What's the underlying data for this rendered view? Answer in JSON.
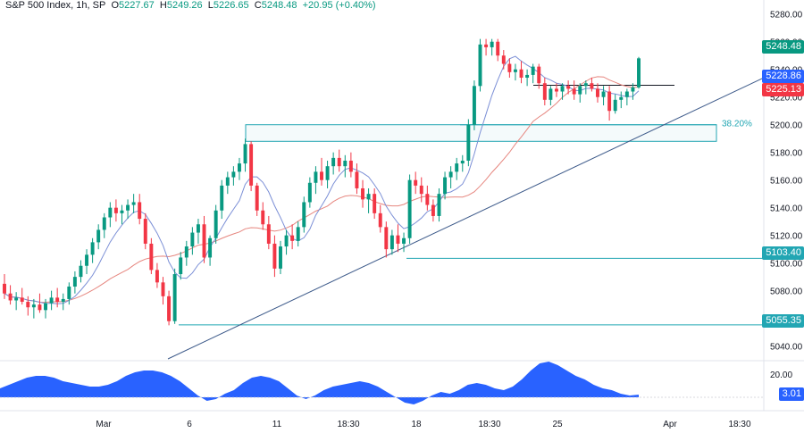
{
  "header": {
    "symbol": "S&P 500 Index, 1h, SP",
    "o_label": "O",
    "o_value": "5227.67",
    "h_label": "H",
    "h_value": "5249.26",
    "l_label": "L",
    "l_value": "5226.65",
    "c_label": "C",
    "c_value": "5248.48",
    "change": "+20.95 (+0.40%)"
  },
  "colors": {
    "up": "#089981",
    "down": "#f23645",
    "fast_ma": "#7b8fd6",
    "slow_ma": "#e6867f",
    "level": "#22a6b3",
    "trend": "#3d5a8a",
    "osc": "#2962ff"
  },
  "annotations": {
    "fib_label": "38.20%",
    "level_1": "5103.40",
    "level_2": "5055.35",
    "tag_close": "5248.48",
    "tag_high": "5228.86",
    "tag_low": "5225.13",
    "osc_value": "3.01"
  },
  "chart_data": {
    "type": "candlestick",
    "title": "S&P 500 Index, 1h, SP",
    "y_axis": {
      "ticks": [
        "5280.00",
        "5260.00",
        "5240.00",
        "5220.00",
        "5200.00",
        "5180.00",
        "5160.00",
        "5140.00",
        "5120.00",
        "5100.00",
        "5080.00",
        "5060.00",
        "5040.00"
      ],
      "ylim": [
        5032,
        5285
      ]
    },
    "x_axis": {
      "ticks": [
        "Mar",
        "6",
        "11",
        "18:30",
        "18",
        "18:30",
        "25",
        "Apr",
        "18:30"
      ]
    },
    "candles": [
      [
        5085,
        5092,
        5074,
        5078
      ],
      [
        5078,
        5084,
        5070,
        5073
      ],
      [
        5073,
        5079,
        5066,
        5075
      ],
      [
        5075,
        5082,
        5070,
        5072
      ],
      [
        5072,
        5076,
        5062,
        5068
      ],
      [
        5068,
        5074,
        5060,
        5070
      ],
      [
        5070,
        5078,
        5064,
        5066
      ],
      [
        5066,
        5074,
        5060,
        5071
      ],
      [
        5071,
        5080,
        5066,
        5075
      ],
      [
        5075,
        5082,
        5068,
        5072
      ],
      [
        5072,
        5078,
        5066,
        5074
      ],
      [
        5074,
        5086,
        5070,
        5083
      ],
      [
        5083,
        5094,
        5078,
        5090
      ],
      [
        5090,
        5102,
        5086,
        5098
      ],
      [
        5098,
        5110,
        5092,
        5106
      ],
      [
        5106,
        5118,
        5100,
        5115
      ],
      [
        5115,
        5128,
        5110,
        5124
      ],
      [
        5124,
        5136,
        5118,
        5133
      ],
      [
        5133,
        5144,
        5126,
        5140
      ],
      [
        5140,
        5146,
        5130,
        5136
      ],
      [
        5136,
        5142,
        5128,
        5138
      ],
      [
        5138,
        5146,
        5132,
        5142
      ],
      [
        5142,
        5150,
        5136,
        5144
      ],
      [
        5144,
        5150,
        5128,
        5132
      ],
      [
        5132,
        5136,
        5110,
        5114
      ],
      [
        5114,
        5118,
        5092,
        5095
      ],
      [
        5095,
        5100,
        5082,
        5086
      ],
      [
        5086,
        5090,
        5070,
        5076
      ],
      [
        5076,
        5080,
        5055,
        5058
      ],
      [
        5058,
        5096,
        5056,
        5092
      ],
      [
        5092,
        5108,
        5088,
        5104
      ],
      [
        5104,
        5116,
        5098,
        5112
      ],
      [
        5112,
        5126,
        5106,
        5122
      ],
      [
        5122,
        5132,
        5114,
        5128
      ],
      [
        5128,
        5134,
        5100,
        5104
      ],
      [
        5104,
        5120,
        5098,
        5118
      ],
      [
        5118,
        5142,
        5114,
        5138
      ],
      [
        5138,
        5160,
        5132,
        5156
      ],
      [
        5156,
        5166,
        5150,
        5162
      ],
      [
        5162,
        5170,
        5156,
        5166
      ],
      [
        5166,
        5176,
        5160,
        5172
      ],
      [
        5172,
        5190,
        5166,
        5186
      ],
      [
        5186,
        5188,
        5152,
        5156
      ],
      [
        5156,
        5158,
        5134,
        5138
      ],
      [
        5138,
        5144,
        5124,
        5128
      ],
      [
        5128,
        5134,
        5110,
        5114
      ],
      [
        5114,
        5120,
        5090,
        5096
      ],
      [
        5096,
        5116,
        5092,
        5112
      ],
      [
        5112,
        5124,
        5106,
        5120
      ],
      [
        5120,
        5128,
        5110,
        5116
      ],
      [
        5116,
        5130,
        5112,
        5126
      ],
      [
        5126,
        5148,
        5122,
        5144
      ],
      [
        5144,
        5162,
        5140,
        5158
      ],
      [
        5158,
        5170,
        5150,
        5166
      ],
      [
        5166,
        5176,
        5156,
        5160
      ],
      [
        5160,
        5174,
        5154,
        5170
      ],
      [
        5170,
        5180,
        5164,
        5176
      ],
      [
        5176,
        5182,
        5166,
        5170
      ],
      [
        5170,
        5178,
        5162,
        5174
      ],
      [
        5174,
        5180,
        5162,
        5166
      ],
      [
        5166,
        5172,
        5150,
        5154
      ],
      [
        5154,
        5160,
        5140,
        5146
      ],
      [
        5146,
        5154,
        5136,
        5150
      ],
      [
        5150,
        5154,
        5132,
        5136
      ],
      [
        5136,
        5142,
        5122,
        5126
      ],
      [
        5126,
        5130,
        5104,
        5110
      ],
      [
        5110,
        5124,
        5106,
        5120
      ],
      [
        5120,
        5128,
        5108,
        5114
      ],
      [
        5114,
        5122,
        5108,
        5118
      ],
      [
        5118,
        5164,
        5114,
        5160
      ],
      [
        5160,
        5166,
        5150,
        5156
      ],
      [
        5156,
        5162,
        5144,
        5150
      ],
      [
        5150,
        5156,
        5138,
        5142
      ],
      [
        5142,
        5146,
        5130,
        5134
      ],
      [
        5134,
        5154,
        5130,
        5150
      ],
      [
        5150,
        5166,
        5146,
        5162
      ],
      [
        5162,
        5170,
        5154,
        5166
      ],
      [
        5166,
        5176,
        5160,
        5172
      ],
      [
        5172,
        5178,
        5166,
        5174
      ],
      [
        5174,
        5204,
        5170,
        5200
      ],
      [
        5200,
        5232,
        5196,
        5228
      ],
      [
        5228,
        5262,
        5224,
        5258
      ],
      [
        5258,
        5262,
        5250,
        5256
      ],
      [
        5256,
        5262,
        5250,
        5260
      ],
      [
        5260,
        5262,
        5246,
        5250
      ],
      [
        5250,
        5254,
        5240,
        5244
      ],
      [
        5244,
        5248,
        5234,
        5238
      ],
      [
        5238,
        5244,
        5232,
        5240
      ],
      [
        5240,
        5246,
        5230,
        5234
      ],
      [
        5234,
        5240,
        5228,
        5236
      ],
      [
        5236,
        5244,
        5230,
        5242
      ],
      [
        5242,
        5244,
        5226,
        5230
      ],
      [
        5230,
        5234,
        5214,
        5218
      ],
      [
        5218,
        5228,
        5214,
        5226
      ],
      [
        5226,
        5230,
        5220,
        5224
      ],
      [
        5224,
        5230,
        5218,
        5228
      ],
      [
        5228,
        5232,
        5222,
        5226
      ],
      [
        5226,
        5232,
        5218,
        5222
      ],
      [
        5222,
        5230,
        5216,
        5228
      ],
      [
        5228,
        5232,
        5222,
        5230
      ],
      [
        5230,
        5234,
        5224,
        5226
      ],
      [
        5226,
        5230,
        5216,
        5220
      ],
      [
        5220,
        5228,
        5214,
        5224
      ],
      [
        5224,
        5228,
        5203,
        5210
      ],
      [
        5210,
        5222,
        5208,
        5218
      ],
      [
        5218,
        5224,
        5212,
        5220
      ],
      [
        5220,
        5226,
        5214,
        5224
      ],
      [
        5224,
        5230,
        5218,
        5227
      ],
      [
        5227,
        5249,
        5226,
        5248
      ]
    ],
    "levels": [
      5103.4,
      5055.35
    ],
    "fib_zone": {
      "label": "38.20%",
      "top": 5200,
      "bottom": 5188
    },
    "oscillator": {
      "last": "3.01",
      "ticks": [
        "20.00"
      ]
    }
  }
}
